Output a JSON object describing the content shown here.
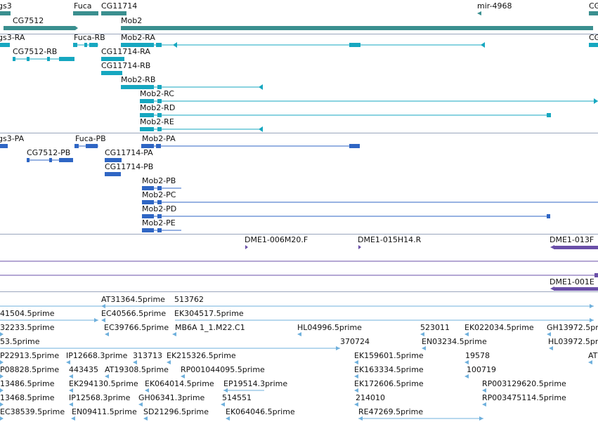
{
  "colors": {
    "gene": "#3a8f8f",
    "transcript": "#16a7c0",
    "protein": "#2f66c4",
    "clone": "#6a4fa8",
    "est": "#6fb0dc",
    "divider": "#9aa6bd"
  },
  "genes": [
    {
      "label": "gs3"
    },
    {
      "label": "Fuca"
    },
    {
      "label": "CG11714"
    },
    {
      "label": "mir-4968"
    },
    {
      "label": "CG"
    },
    {
      "label": "CG7512"
    },
    {
      "label": "Mob2"
    }
  ],
  "transcripts": [
    {
      "label": "gs3-RA"
    },
    {
      "label": "Fuca-RB"
    },
    {
      "label": "Mob2-RA"
    },
    {
      "label": "CG"
    },
    {
      "label": "CG7512-RB"
    },
    {
      "label": "CG11714-RA"
    },
    {
      "label": "CG11714-RB"
    },
    {
      "label": "Mob2-RB"
    },
    {
      "label": "Mob2-RC"
    },
    {
      "label": "Mob2-RD"
    },
    {
      "label": "Mob2-RE"
    }
  ],
  "proteins": [
    {
      "label": "gs3-PA"
    },
    {
      "label": "Fuca-PB"
    },
    {
      "label": "Mob2-PA"
    },
    {
      "label": "CG7512-PB"
    },
    {
      "label": "CG11714-PA"
    },
    {
      "label": "CG11714-PB"
    },
    {
      "label": "Mob2-PB"
    },
    {
      "label": "Mob2-PC"
    },
    {
      "label": "Mob2-PD"
    },
    {
      "label": "Mob2-PE"
    }
  ],
  "clones": [
    {
      "label": "DME1-006M20.F"
    },
    {
      "label": "DME1-015H14.R"
    },
    {
      "label": "DME1-013F"
    },
    {
      "label": "DME1-001E"
    }
  ],
  "ests": [
    {
      "label": "AT31364.5prime"
    },
    {
      "label": "513762"
    },
    {
      "label": "41504.5prime"
    },
    {
      "label": "EC40566.5prime"
    },
    {
      "label": "EK304517.5prime"
    },
    {
      "label": "32233.5prime"
    },
    {
      "label": "EC39766.5prime"
    },
    {
      "label": "MB6A 1_1.M22.C1"
    },
    {
      "label": "HL04996.5prime"
    },
    {
      "label": "523011"
    },
    {
      "label": "EK022034.5prime"
    },
    {
      "label": "GH13972.5prime"
    },
    {
      "label": "53.5prime"
    },
    {
      "label": "370724"
    },
    {
      "label": "EN03234.5prime"
    },
    {
      "label": "HL03972.5prime"
    },
    {
      "label": "P22913.5prime"
    },
    {
      "label": "IP12668.3prime"
    },
    {
      "label": "313713"
    },
    {
      "label": "EK215326.5prime"
    },
    {
      "label": "EK159601.5prime"
    },
    {
      "label": "19578"
    },
    {
      "label": "AT"
    },
    {
      "label": "P08828.5prime"
    },
    {
      "label": "443435"
    },
    {
      "label": "AT19308.5prime"
    },
    {
      "label": "RP001044095.5prime"
    },
    {
      "label": "EK163334.5prime"
    },
    {
      "label": "100719"
    },
    {
      "label": "13486.5prime"
    },
    {
      "label": "EK294130.5prime"
    },
    {
      "label": "EK064014.5prime"
    },
    {
      "label": "EP19514.3prime"
    },
    {
      "label": "EK172606.5prime"
    },
    {
      "label": "RP003129620.5prime"
    },
    {
      "label": "13468.5prime"
    },
    {
      "label": "IP12568.3prime"
    },
    {
      "label": "GH06341.3prime"
    },
    {
      "label": "514551"
    },
    {
      "label": "214010"
    },
    {
      "label": "RP003475114.5prime"
    },
    {
      "label": "EC38539.5prime"
    },
    {
      "label": "EN09411.5prime"
    },
    {
      "label": "SD21296.5prime"
    },
    {
      "label": "EK064046.5prime"
    },
    {
      "label": "RE47269.5prime"
    }
  ]
}
